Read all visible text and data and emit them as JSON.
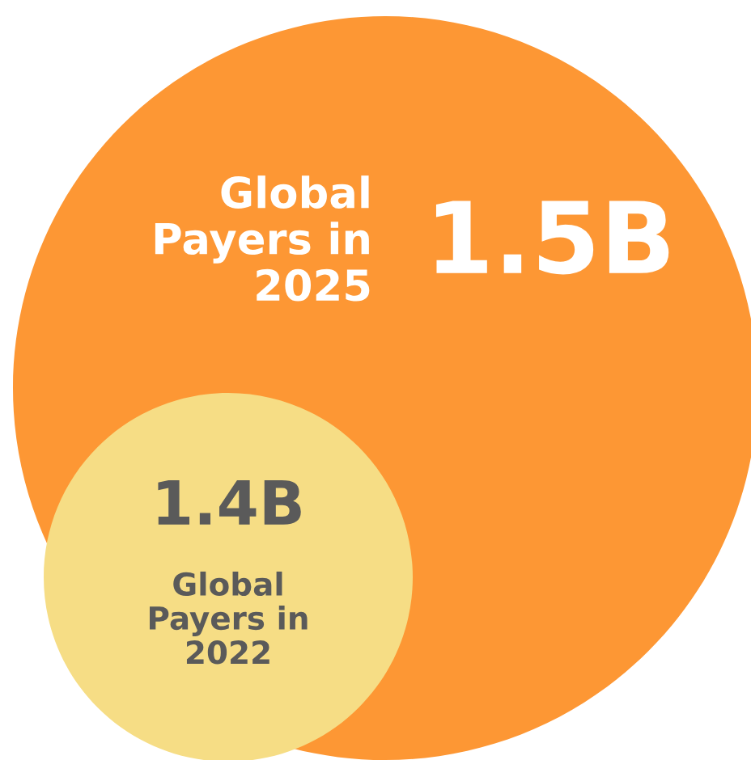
{
  "chart_data": {
    "type": "other",
    "categories": [
      "Global\nPayers in\n2025",
      "Global\nPayers in\n2022"
    ],
    "values": [
      1.5,
      1.4
    ],
    "value_labels": [
      "1.5B",
      "1.4B"
    ],
    "colors": [
      "#fd9734",
      "#f6dd85"
    ]
  }
}
